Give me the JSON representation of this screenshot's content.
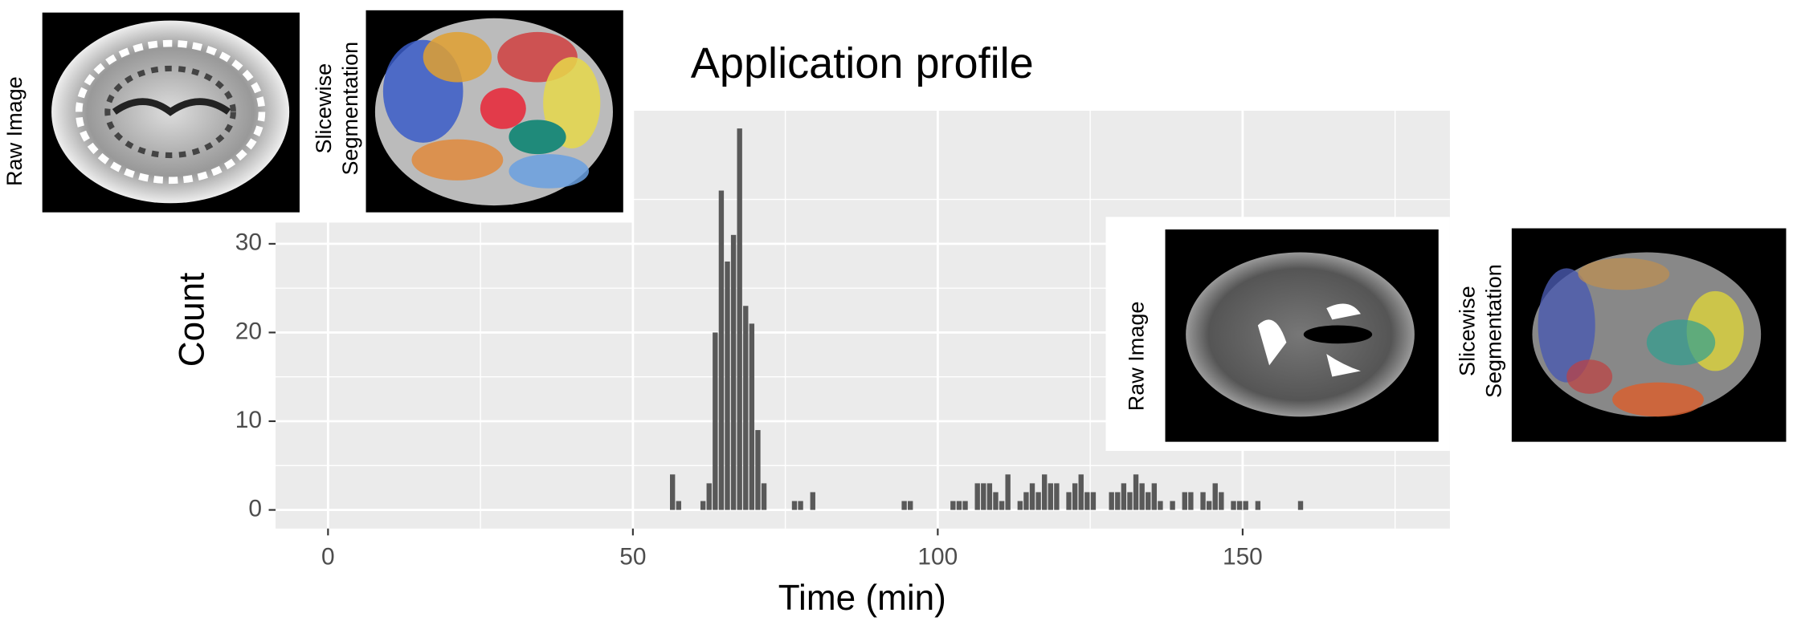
{
  "chart_data": {
    "type": "histogram",
    "title": "Application profile",
    "xlabel": "Time (min)",
    "ylabel": "Count",
    "bins": [
      56,
      57,
      58,
      59,
      60,
      61,
      62,
      63,
      64,
      65,
      66,
      67,
      68,
      69,
      70,
      71,
      72,
      73,
      74,
      75,
      76,
      77,
      78,
      79,
      80,
      81,
      82,
      83,
      84,
      85,
      86,
      87,
      88,
      89,
      90,
      91,
      92,
      93,
      94,
      95,
      96,
      97,
      98,
      99,
      100,
      101,
      102,
      103,
      104,
      105,
      106,
      107,
      108,
      109,
      110,
      111,
      112,
      113,
      114,
      115,
      116,
      117,
      118,
      119,
      120,
      121,
      122,
      123,
      124,
      125,
      126,
      127,
      128,
      129,
      130,
      131,
      132,
      133,
      134,
      135,
      136,
      137,
      138,
      139,
      140,
      141,
      142,
      143,
      144,
      145,
      146,
      147,
      148,
      149,
      150,
      151,
      152,
      153,
      154,
      155,
      156,
      157,
      158,
      159,
      160
    ],
    "counts": [
      4,
      1,
      0,
      0,
      0,
      1,
      3,
      20,
      36,
      28,
      31,
      43,
      23,
      21,
      9,
      3,
      0,
      0,
      0,
      0,
      1,
      1,
      0,
      2,
      0,
      0,
      0,
      0,
      0,
      0,
      0,
      0,
      0,
      0,
      0,
      0,
      0,
      0,
      1,
      1,
      0,
      0,
      0,
      0,
      0,
      0,
      1,
      1,
      1,
      0,
      3,
      3,
      3,
      2,
      1,
      4,
      0,
      1,
      2,
      3,
      2,
      4,
      3,
      3,
      0,
      2,
      3,
      4,
      2,
      2,
      0,
      0,
      2,
      2,
      3,
      2,
      4,
      3,
      2,
      3,
      1,
      0,
      1,
      0,
      2,
      2,
      0,
      2,
      1,
      3,
      2,
      0,
      1,
      1,
      1,
      0,
      1,
      0,
      0,
      0,
      0,
      0,
      0,
      1
    ],
    "color": "#595959",
    "xlim": [
      -8.6,
      184
    ],
    "ylim": [
      -2.1,
      45
    ],
    "xticks": [
      0,
      50,
      100,
      150
    ],
    "yticks": [
      0,
      10,
      20,
      30
    ],
    "x_minor_grid": [
      25,
      75,
      125,
      175
    ],
    "y_minor_grid": [
      5,
      15,
      25,
      35
    ],
    "grid": true
  },
  "images": [
    {
      "label": [
        "Raw Image"
      ]
    },
    {
      "label": [
        "Slicewise",
        "Segmentation"
      ]
    },
    {
      "label": [
        "Raw Image"
      ]
    },
    {
      "label": [
        "Slicewise",
        "Segmentation"
      ]
    }
  ]
}
